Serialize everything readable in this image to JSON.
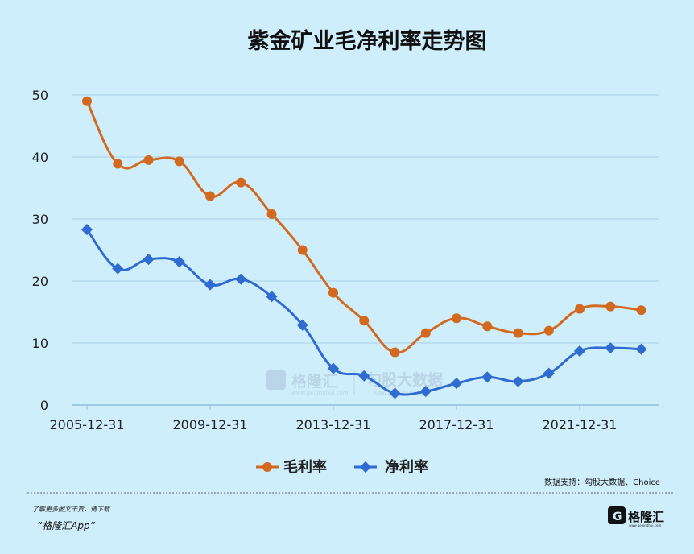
{
  "chart_data": {
    "type": "line",
    "title": "紫金矿业毛净利率走势图",
    "xlabel": "",
    "ylabel": "",
    "ylim": [
      0,
      50
    ],
    "yticks": [
      0,
      10,
      20,
      30,
      40,
      50
    ],
    "grid": true,
    "legend_position": "bottom",
    "x_tick_labels": [
      "2005-12-31",
      "2009-12-31",
      "2013-12-31",
      "2017-12-31",
      "2021-12-31"
    ],
    "x": [
      "2005-12-31",
      "2006-12-31",
      "2007-12-31",
      "2008-12-31",
      "2009-12-31",
      "2010-12-31",
      "2011-12-31",
      "2012-12-31",
      "2013-12-31",
      "2014-12-31",
      "2015-12-31",
      "2016-12-31",
      "2017-12-31",
      "2018-12-31",
      "2019-12-31",
      "2020-12-31",
      "2021-12-31",
      "2022-12-31",
      "2023-12-31"
    ],
    "series": [
      {
        "name": "毛利率",
        "color": "#d2691e",
        "marker": "circle",
        "values": [
          49.0,
          38.9,
          39.5,
          39.3,
          33.7,
          35.9,
          30.8,
          25.0,
          18.1,
          13.6,
          8.5,
          11.6,
          14.0,
          12.7,
          11.6,
          12.0,
          15.5,
          15.9,
          15.3
        ]
      },
      {
        "name": "净利率",
        "color": "#2f6bd0",
        "marker": "diamond",
        "values": [
          28.3,
          22.0,
          23.5,
          23.1,
          19.4,
          20.3,
          17.5,
          12.9,
          5.9,
          4.7,
          1.9,
          2.2,
          3.5,
          4.5,
          3.8,
          5.1,
          8.7,
          9.2,
          9.0
        ]
      }
    ]
  },
  "source_note": "数据支持：勾股大数据、Choice",
  "watermark": {
    "brand": "格隆汇",
    "brand_url": "www.gelonghui.com",
    "data_brand": "勾股大数据",
    "data_url": "www.gogudata.com"
  },
  "footer": {
    "line1": "了解更多图文干货，请下载",
    "line2": "“格隆汇App”"
  },
  "logo": {
    "text": "格隆汇",
    "url": "www.gelonghui.com"
  },
  "colors": {
    "background": "#cfeefb",
    "grid": "#a9d2ea",
    "gross": "#d2691e",
    "net": "#2f6bd0"
  }
}
